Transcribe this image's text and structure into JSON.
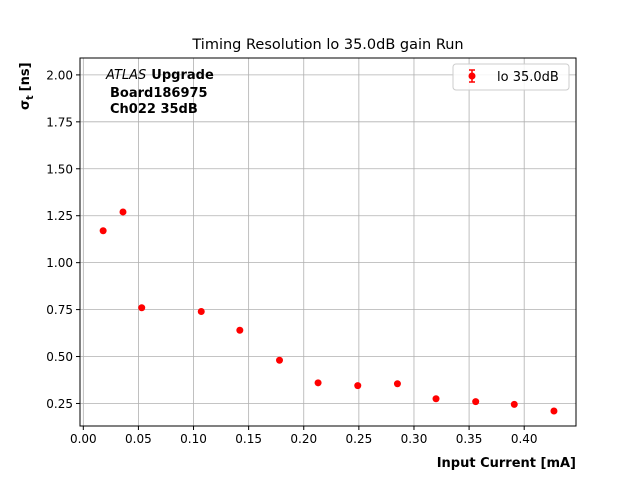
{
  "chart_data": {
    "type": "scatter",
    "title": "Timing Resolution lo 35.0dB gain Run",
    "xlabel": "Input Current [mA]",
    "ylabel_main": "σ",
    "ylabel_sub": "t",
    "ylabel_unit": "[ns]",
    "xlim": [
      -0.003,
      0.447
    ],
    "ylim": [
      0.13,
      2.09
    ],
    "xticks": [
      0.0,
      0.05,
      0.1,
      0.15,
      0.2,
      0.25,
      0.3,
      0.35,
      0.4
    ],
    "xtick_labels": [
      "0.00",
      "0.05",
      "0.10",
      "0.15",
      "0.20",
      "0.25",
      "0.30",
      "0.35",
      "0.40"
    ],
    "yticks": [
      0.25,
      0.5,
      0.75,
      1.0,
      1.25,
      1.5,
      1.75,
      2.0
    ],
    "ytick_labels": [
      "0.25",
      "0.50",
      "0.75",
      "1.00",
      "1.25",
      "1.50",
      "1.75",
      "2.00"
    ],
    "grid": true,
    "legend_position": "top-right",
    "series": [
      {
        "name": "lo 35.0dB",
        "color": "#ff0000",
        "x": [
          0.018,
          0.036,
          0.053,
          0.107,
          0.142,
          0.178,
          0.213,
          0.249,
          0.285,
          0.32,
          0.356,
          0.391,
          0.427
        ],
        "y": [
          1.17,
          1.27,
          0.76,
          0.74,
          0.64,
          0.48,
          0.36,
          0.345,
          0.355,
          0.275,
          0.26,
          0.245,
          0.21
        ]
      }
    ],
    "annotation": {
      "italic": "ATLAS",
      "bold": "Upgrade",
      "lines": [
        "Board186975",
        "Ch022 35dB"
      ]
    }
  }
}
